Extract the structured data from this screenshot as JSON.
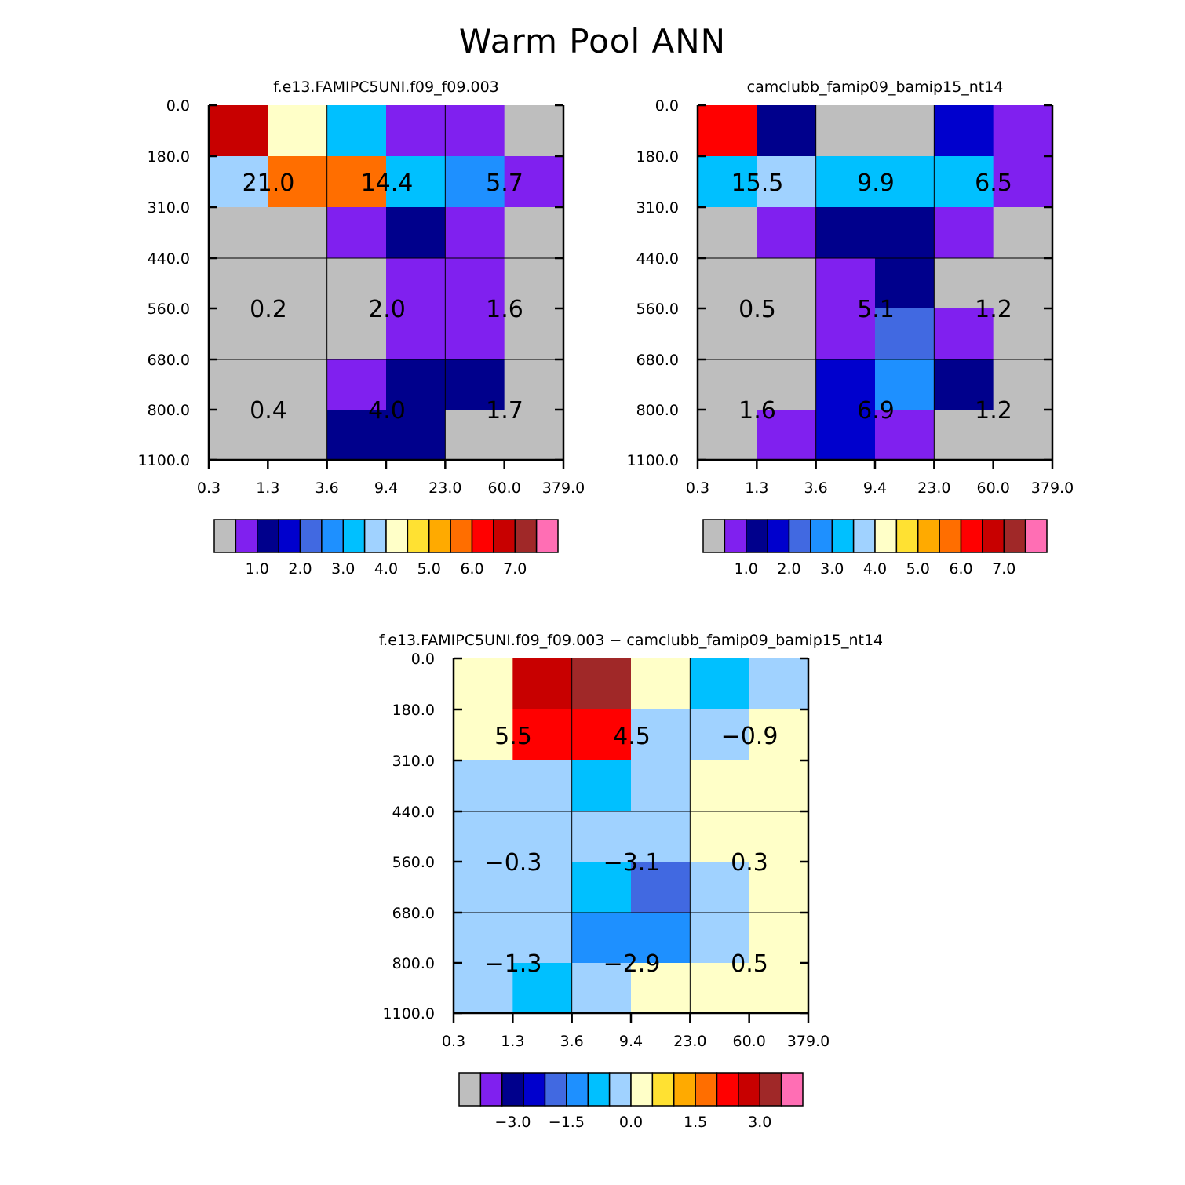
{
  "title": "Warm Pool ANN",
  "chart_data": [
    {
      "type": "heatmap",
      "title": "f.e13.FAMIPC5UNI.f09_f09.003",
      "x_tick_labels": [
        "0.3",
        "1.3",
        "3.6",
        "9.4",
        "23.0",
        "60.0",
        "379.0"
      ],
      "y_tick_labels": [
        "0.0",
        "180.0",
        "310.0",
        "440.0",
        "560.0",
        "680.0",
        "800.0",
        "1100.0"
      ],
      "colors": [
        [
          "#c80000",
          "#ffffc8",
          "#00c0ff",
          "#8020ef",
          "#8020ef",
          "#bebebe"
        ],
        [
          "#a0d2ff",
          "#ff6e00",
          "#ff6e00",
          "#00c0ff",
          "#1e90ff",
          "#8020ef"
        ],
        [
          "#bebebe",
          "#bebebe",
          "#8020ef",
          "#00008c",
          "#8020ef",
          "#bebebe"
        ],
        [
          "#bebebe",
          "#bebebe",
          "#bebebe",
          "#8020ef",
          "#8020ef",
          "#bebebe"
        ],
        [
          "#bebebe",
          "#bebebe",
          "#bebebe",
          "#8020ef",
          "#8020ef",
          "#bebebe"
        ],
        [
          "#bebebe",
          "#bebebe",
          "#8020ef",
          "#00008c",
          "#00008c",
          "#bebebe"
        ],
        [
          "#bebebe",
          "#bebebe",
          "#00008c",
          "#00008c",
          "#bebebe",
          "#bebebe"
        ]
      ],
      "box_labels": [
        {
          "row": 1,
          "col": 0,
          "text": "21.0"
        },
        {
          "row": 1,
          "col": 1,
          "text": "14.4"
        },
        {
          "row": 1,
          "col": 2,
          "text": "5.7"
        },
        {
          "row": 2,
          "col": 0,
          "text": "0.2"
        },
        {
          "row": 2,
          "col": 1,
          "text": "2.0"
        },
        {
          "row": 2,
          "col": 2,
          "text": "1.6"
        },
        {
          "row": 3,
          "col": 0,
          "text": "0.4"
        },
        {
          "row": 3,
          "col": 1,
          "text": "4.0"
        },
        {
          "row": 3,
          "col": 2,
          "text": "1.7"
        }
      ],
      "colorbar": {
        "colors": [
          "#bebebe",
          "#8020ef",
          "#00008c",
          "#0000cd",
          "#4169e1",
          "#1e90ff",
          "#00c0ff",
          "#a0d2ff",
          "#ffffc8",
          "#ffe132",
          "#ffaa00",
          "#ff6e00",
          "#ff0000",
          "#c80000",
          "#a02828",
          "#ff6eb4"
        ],
        "labels": [
          {
            "boundary": 2,
            "text": "1.0"
          },
          {
            "boundary": 4,
            "text": "2.0"
          },
          {
            "boundary": 6,
            "text": "3.0"
          },
          {
            "boundary": 8,
            "text": "4.0"
          },
          {
            "boundary": 10,
            "text": "5.0"
          },
          {
            "boundary": 12,
            "text": "6.0"
          },
          {
            "boundary": 14,
            "text": "7.0"
          }
        ]
      }
    },
    {
      "type": "heatmap",
      "title": "camclubb_famip09_bamip15_nt14",
      "x_tick_labels": [
        "0.3",
        "1.3",
        "3.6",
        "9.4",
        "23.0",
        "60.0",
        "379.0"
      ],
      "y_tick_labels": [
        "0.0",
        "180.0",
        "310.0",
        "440.0",
        "560.0",
        "680.0",
        "800.0",
        "1100.0"
      ],
      "colors": [
        [
          "#ff0000",
          "#00008c",
          "#bebebe",
          "#bebebe",
          "#0000cd",
          "#8020ef"
        ],
        [
          "#00c0ff",
          "#a0d2ff",
          "#00c0ff",
          "#00c0ff",
          "#00c0ff",
          "#8020ef"
        ],
        [
          "#bebebe",
          "#8020ef",
          "#00008c",
          "#00008c",
          "#8020ef",
          "#bebebe"
        ],
        [
          "#bebebe",
          "#bebebe",
          "#8020ef",
          "#00008c",
          "#bebebe",
          "#bebebe"
        ],
        [
          "#bebebe",
          "#bebebe",
          "#8020ef",
          "#4169e1",
          "#8020ef",
          "#bebebe"
        ],
        [
          "#bebebe",
          "#bebebe",
          "#0000cd",
          "#1e90ff",
          "#00008c",
          "#bebebe"
        ],
        [
          "#bebebe",
          "#8020ef",
          "#0000cd",
          "#8020ef",
          "#bebebe",
          "#bebebe"
        ]
      ],
      "box_labels": [
        {
          "row": 1,
          "col": 0,
          "text": "15.5"
        },
        {
          "row": 1,
          "col": 1,
          "text": "9.9"
        },
        {
          "row": 1,
          "col": 2,
          "text": "6.5"
        },
        {
          "row": 2,
          "col": 0,
          "text": "0.5"
        },
        {
          "row": 2,
          "col": 1,
          "text": "5.1"
        },
        {
          "row": 2,
          "col": 2,
          "text": "1.2"
        },
        {
          "row": 3,
          "col": 0,
          "text": "1.6"
        },
        {
          "row": 3,
          "col": 1,
          "text": "6.9"
        },
        {
          "row": 3,
          "col": 2,
          "text": "1.2"
        }
      ],
      "colorbar": {
        "colors": [
          "#bebebe",
          "#8020ef",
          "#00008c",
          "#0000cd",
          "#4169e1",
          "#1e90ff",
          "#00c0ff",
          "#a0d2ff",
          "#ffffc8",
          "#ffe132",
          "#ffaa00",
          "#ff6e00",
          "#ff0000",
          "#c80000",
          "#a02828",
          "#ff6eb4"
        ],
        "labels": [
          {
            "boundary": 2,
            "text": "1.0"
          },
          {
            "boundary": 4,
            "text": "2.0"
          },
          {
            "boundary": 6,
            "text": "3.0"
          },
          {
            "boundary": 8,
            "text": "4.0"
          },
          {
            "boundary": 10,
            "text": "5.0"
          },
          {
            "boundary": 12,
            "text": "6.0"
          },
          {
            "boundary": 14,
            "text": "7.0"
          }
        ]
      }
    },
    {
      "type": "heatmap",
      "title": "f.e13.FAMIPC5UNI.f09_f09.003 − camclubb_famip09_bamip15_nt14",
      "x_tick_labels": [
        "0.3",
        "1.3",
        "3.6",
        "9.4",
        "23.0",
        "60.0",
        "379.0"
      ],
      "y_tick_labels": [
        "0.0",
        "180.0",
        "310.0",
        "440.0",
        "560.0",
        "680.0",
        "800.0",
        "1100.0"
      ],
      "colors": [
        [
          "#ffffc8",
          "#c80000",
          "#a02828",
          "#ffffc8",
          "#00c0ff",
          "#a0d2ff"
        ],
        [
          "#ffffc8",
          "#ff0000",
          "#ff0000",
          "#a0d2ff",
          "#a0d2ff",
          "#ffffc8"
        ],
        [
          "#a0d2ff",
          "#a0d2ff",
          "#00c0ff",
          "#a0d2ff",
          "#ffffc8",
          "#ffffc8"
        ],
        [
          "#a0d2ff",
          "#a0d2ff",
          "#a0d2ff",
          "#a0d2ff",
          "#ffffc8",
          "#ffffc8"
        ],
        [
          "#a0d2ff",
          "#a0d2ff",
          "#00c0ff",
          "#4169e1",
          "#a0d2ff",
          "#ffffc8"
        ],
        [
          "#a0d2ff",
          "#a0d2ff",
          "#1e90ff",
          "#1e90ff",
          "#a0d2ff",
          "#ffffc8"
        ],
        [
          "#a0d2ff",
          "#00c0ff",
          "#a0d2ff",
          "#ffffc8",
          "#ffffc8",
          "#ffffc8"
        ]
      ],
      "box_labels": [
        {
          "row": 1,
          "col": 0,
          "text": "5.5"
        },
        {
          "row": 1,
          "col": 1,
          "text": "4.5"
        },
        {
          "row": 1,
          "col": 2,
          "text": "−0.9"
        },
        {
          "row": 2,
          "col": 0,
          "text": "−0.3"
        },
        {
          "row": 2,
          "col": 1,
          "text": "−3.1"
        },
        {
          "row": 2,
          "col": 2,
          "text": "0.3"
        },
        {
          "row": 3,
          "col": 0,
          "text": "−1.3"
        },
        {
          "row": 3,
          "col": 1,
          "text": "−2.9"
        },
        {
          "row": 3,
          "col": 2,
          "text": "0.5"
        }
      ],
      "colorbar": {
        "colors": [
          "#bebebe",
          "#8020ef",
          "#00008c",
          "#0000cd",
          "#4169e1",
          "#1e90ff",
          "#00c0ff",
          "#a0d2ff",
          "#ffffc8",
          "#ffe132",
          "#ffaa00",
          "#ff6e00",
          "#ff0000",
          "#c80000",
          "#a02828",
          "#ff6eb4"
        ],
        "labels": [
          {
            "boundary": 2.5,
            "text": "−3.0"
          },
          {
            "boundary": 5,
            "text": "−1.5"
          },
          {
            "boundary": 8,
            "text": "0.0"
          },
          {
            "boundary": 11,
            "text": "1.5"
          },
          {
            "boundary": 14,
            "text": "3.0"
          }
        ]
      }
    }
  ]
}
